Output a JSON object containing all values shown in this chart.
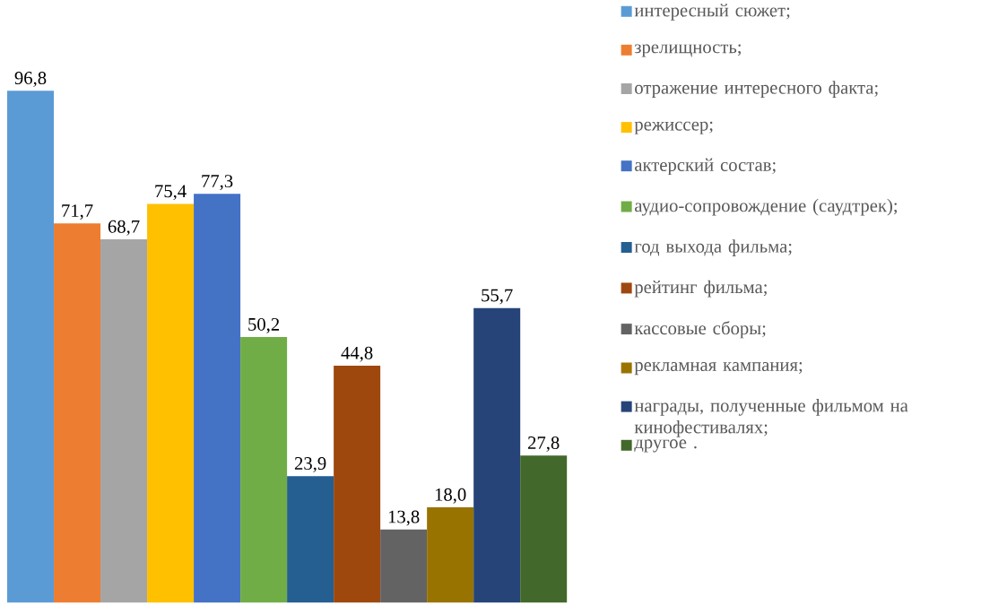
{
  "chart_data": {
    "type": "bar",
    "categories": [
      null
    ],
    "legend": "right",
    "series": [
      {
        "name": "интересный сюжет;",
        "color": "#5b9bd5",
        "values": [
          96.8
        ],
        "value_labels": [
          "96,8"
        ]
      },
      {
        "name": "зрелищность;",
        "color": "#ed7d31",
        "values": [
          71.7
        ],
        "value_labels": [
          "71,7"
        ]
      },
      {
        "name": "отражение интересного факта;",
        "color": "#a5a5a5",
        "values": [
          68.7
        ],
        "value_labels": [
          "68,7"
        ]
      },
      {
        "name": "режиссер;",
        "color": "#ffc000",
        "values": [
          75.4
        ],
        "value_labels": [
          "75,4"
        ]
      },
      {
        "name": "актерский состав;",
        "color": "#4472c4",
        "values": [
          77.3
        ],
        "value_labels": [
          "77,3"
        ]
      },
      {
        "name": "аудио-сопровождение (саудтрек);",
        "color": "#70ad47",
        "values": [
          50.2
        ],
        "value_labels": [
          "50,2"
        ]
      },
      {
        "name": "год выхода фильма;",
        "color": "#255e91",
        "values": [
          23.9
        ],
        "value_labels": [
          "23,9"
        ]
      },
      {
        "name": "рейтинг фильма;",
        "color": "#9e480e",
        "values": [
          44.8
        ],
        "value_labels": [
          "44,8"
        ]
      },
      {
        "name": "кассовые сборы;",
        "color": "#636363",
        "values": [
          13.8
        ],
        "value_labels": [
          "13,8"
        ]
      },
      {
        "name": "рекламная кампания;",
        "color": "#997300",
        "values": [
          18.0
        ],
        "value_labels": [
          "18,0"
        ]
      },
      {
        "name": "награды, полученные фильмом на кинофестивалях;",
        "color": "#264478",
        "values": [
          55.7
        ],
        "value_labels": [
          "55,7"
        ]
      },
      {
        "name": "другое .",
        "color": "#43682b",
        "values": [
          27.8
        ],
        "value_labels": [
          "27,8"
        ]
      }
    ]
  }
}
